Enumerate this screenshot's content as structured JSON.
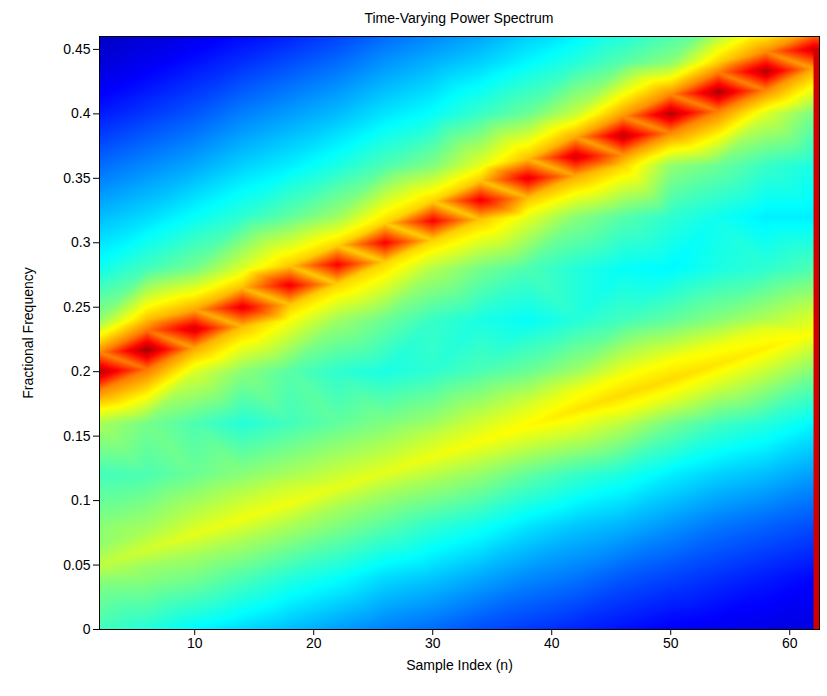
{
  "chart_data": {
    "type": "heatmap",
    "title": "Time-Varying Power Spectrum",
    "x_label": "Sample Index (n)",
    "y_label": "Fractional Frequency",
    "xlim": [
      2,
      62.5
    ],
    "ylim": [
      0,
      0.46
    ],
    "xticks": [
      10,
      20,
      30,
      40,
      50,
      60
    ],
    "yticks": [
      0,
      0.05,
      0.1,
      0.15,
      0.2,
      0.25,
      0.3,
      0.35,
      0.4,
      0.45
    ],
    "grid": false,
    "zlim": [
      0,
      1
    ],
    "cells": [
      {
        "n": 2,
        "frequency": [
          0,
          0.035,
          0.05,
          0.065,
          0.08,
          0.12,
          0.16,
          0.185,
          0.2,
          0.215,
          0.24,
          0.28,
          0.32,
          0.36,
          0.4,
          0.44,
          0.48
        ],
        "power": [
          0.44,
          0.5,
          0.56,
          0.52,
          0.51,
          0.44,
          0.54,
          0.74,
          0.95,
          0.74,
          0.52,
          0.39,
          0.31,
          0.23,
          0.15,
          0.08,
          0.05
        ]
      },
      {
        "n": 6,
        "frequency": [
          0,
          0.04,
          0.047,
          0.062,
          0.077,
          0.12,
          0.16,
          0.202,
          0.217,
          0.232,
          0.24,
          0.28,
          0.32,
          0.36,
          0.4,
          0.44,
          0.48
        ],
        "power": [
          0.41,
          0.51,
          0.52,
          0.58,
          0.54,
          0.45,
          0.49,
          0.76,
          0.97,
          0.76,
          0.69,
          0.44,
          0.34,
          0.26,
          0.18,
          0.11,
          0.06
        ]
      },
      {
        "n": 10,
        "frequency": [
          0,
          0.04,
          0.059,
          0.074,
          0.089,
          0.12,
          0.16,
          0.2,
          0.218,
          0.233,
          0.248,
          0.28,
          0.32,
          0.36,
          0.4,
          0.44,
          0.48
        ],
        "power": [
          0.37,
          0.49,
          0.54,
          0.6,
          0.56,
          0.48,
          0.45,
          0.59,
          0.71,
          0.92,
          0.71,
          0.49,
          0.38,
          0.29,
          0.21,
          0.14,
          0.07
        ]
      },
      {
        "n": 14,
        "frequency": [
          0,
          0.04,
          0.071,
          0.086,
          0.101,
          0.12,
          0.16,
          0.2,
          0.235,
          0.25,
          0.265,
          0.28,
          0.32,
          0.36,
          0.4,
          0.44,
          0.48
        ],
        "power": [
          0.34,
          0.45,
          0.55,
          0.61,
          0.57,
          0.51,
          0.41,
          0.51,
          0.69,
          0.9,
          0.69,
          0.59,
          0.42,
          0.33,
          0.25,
          0.17,
          0.1
        ]
      },
      {
        "n": 18,
        "frequency": [
          0,
          0.04,
          0.083,
          0.098,
          0.113,
          0.12,
          0.16,
          0.2,
          0.24,
          0.252,
          0.267,
          0.282,
          0.32,
          0.36,
          0.4,
          0.44,
          0.48
        ],
        "power": [
          0.31,
          0.41,
          0.55,
          0.61,
          0.57,
          0.54,
          0.44,
          0.46,
          0.62,
          0.68,
          0.89,
          0.68,
          0.47,
          0.36,
          0.28,
          0.2,
          0.12
        ]
      },
      {
        "n": 22,
        "frequency": [
          0,
          0.04,
          0.08,
          0.095,
          0.11,
          0.125,
          0.16,
          0.2,
          0.24,
          0.268,
          0.283,
          0.298,
          0.32,
          0.36,
          0.4,
          0.44,
          0.48
        ],
        "power": [
          0.28,
          0.38,
          0.5,
          0.54,
          0.6,
          0.56,
          0.47,
          0.42,
          0.53,
          0.67,
          0.88,
          0.67,
          0.53,
          0.4,
          0.31,
          0.23,
          0.15
        ]
      },
      {
        "n": 26,
        "frequency": [
          0,
          0.04,
          0.08,
          0.107,
          0.122,
          0.137,
          0.16,
          0.2,
          0.24,
          0.285,
          0.3,
          0.315,
          0.36,
          0.4,
          0.44,
          0.48
        ],
        "power": [
          0.25,
          0.34,
          0.46,
          0.54,
          0.6,
          0.56,
          0.5,
          0.4,
          0.48,
          0.67,
          0.88,
          0.67,
          0.45,
          0.35,
          0.27,
          0.19
        ]
      },
      {
        "n": 30,
        "frequency": [
          0,
          0.04,
          0.08,
          0.119,
          0.134,
          0.149,
          0.16,
          0.2,
          0.24,
          0.28,
          0.302,
          0.317,
          0.332,
          0.36,
          0.4,
          0.44,
          0.48
        ],
        "power": [
          0.23,
          0.32,
          0.42,
          0.55,
          0.61,
          0.57,
          0.53,
          0.42,
          0.43,
          0.55,
          0.67,
          0.88,
          0.67,
          0.5,
          0.38,
          0.3,
          0.22
        ]
      },
      {
        "n": 34,
        "frequency": [
          0,
          0.04,
          0.08,
          0.12,
          0.131,
          0.146,
          0.161,
          0.2,
          0.24,
          0.28,
          0.318,
          0.333,
          0.348,
          0.36,
          0.4,
          0.44,
          0.48
        ],
        "power": [
          0.2,
          0.29,
          0.39,
          0.52,
          0.56,
          0.62,
          0.58,
          0.45,
          0.4,
          0.49,
          0.68,
          0.89,
          0.68,
          0.6,
          0.43,
          0.33,
          0.25
        ]
      },
      {
        "n": 38,
        "frequency": [
          0,
          0.04,
          0.08,
          0.12,
          0.143,
          0.158,
          0.173,
          0.2,
          0.24,
          0.28,
          0.32,
          0.335,
          0.35,
          0.365,
          0.4,
          0.44,
          0.48
        ],
        "power": [
          0.18,
          0.26,
          0.35,
          0.47,
          0.57,
          0.63,
          0.59,
          0.48,
          0.38,
          0.45,
          0.6,
          0.69,
          0.9,
          0.69,
          0.48,
          0.37,
          0.29
        ]
      },
      {
        "n": 42,
        "frequency": [
          0,
          0.04,
          0.08,
          0.12,
          0.155,
          0.17,
          0.185,
          0.2,
          0.24,
          0.28,
          0.32,
          0.352,
          0.367,
          0.382,
          0.4,
          0.44,
          0.48
        ],
        "power": [
          0.16,
          0.24,
          0.32,
          0.43,
          0.59,
          0.65,
          0.61,
          0.53,
          0.41,
          0.41,
          0.51,
          0.71,
          0.92,
          0.71,
          0.57,
          0.41,
          0.32
        ]
      },
      {
        "n": 46,
        "frequency": [
          0,
          0.04,
          0.08,
          0.12,
          0.16,
          0.167,
          0.182,
          0.197,
          0.24,
          0.28,
          0.32,
          0.36,
          0.368,
          0.383,
          0.398,
          0.44,
          0.48
        ],
        "power": [
          0.14,
          0.21,
          0.3,
          0.4,
          0.56,
          0.6,
          0.66,
          0.62,
          0.44,
          0.38,
          0.46,
          0.67,
          0.73,
          0.94,
          0.73,
          0.46,
          0.35
        ]
      },
      {
        "n": 50,
        "frequency": [
          0,
          0.04,
          0.08,
          0.12,
          0.16,
          0.179,
          0.194,
          0.209,
          0.24,
          0.28,
          0.32,
          0.36,
          0.385,
          0.4,
          0.415,
          0.44,
          0.48
        ],
        "power": [
          0.12,
          0.19,
          0.27,
          0.36,
          0.49,
          0.6,
          0.66,
          0.62,
          0.47,
          0.37,
          0.42,
          0.52,
          0.74,
          0.95,
          0.74,
          0.51,
          0.39
        ]
      },
      {
        "n": 54,
        "frequency": [
          0,
          0.04,
          0.08,
          0.12,
          0.16,
          0.191,
          0.206,
          0.221,
          0.24,
          0.28,
          0.32,
          0.36,
          0.402,
          0.417,
          0.432,
          0.44,
          0.48
        ],
        "power": [
          0.11,
          0.17,
          0.24,
          0.33,
          0.44,
          0.59,
          0.65,
          0.61,
          0.51,
          0.4,
          0.39,
          0.48,
          0.75,
          0.96,
          0.75,
          0.67,
          0.44
        ]
      },
      {
        "n": 58,
        "frequency": [
          0,
          0.04,
          0.08,
          0.12,
          0.16,
          0.203,
          0.218,
          0.233,
          0.24,
          0.28,
          0.32,
          0.36,
          0.4,
          0.418,
          0.433,
          0.448,
          0.48
        ],
        "power": [
          0.1,
          0.15,
          0.22,
          0.31,
          0.41,
          0.58,
          0.64,
          0.6,
          0.55,
          0.42,
          0.36,
          0.43,
          0.59,
          0.74,
          0.95,
          0.74,
          0.49
        ]
      },
      {
        "n": 62,
        "frequency": [
          0,
          0.04,
          0.08,
          0.12,
          0.16,
          0.2,
          0.215,
          0.23,
          0.245,
          0.28,
          0.32,
          0.36,
          0.4,
          0.435,
          0.45,
          0.465,
          0.48
        ],
        "power": [
          0.09,
          0.13,
          0.2,
          0.28,
          0.37,
          0.5,
          0.56,
          0.62,
          0.58,
          0.45,
          0.36,
          0.4,
          0.49,
          0.71,
          0.92,
          0.71,
          0.59
        ]
      }
    ]
  }
}
